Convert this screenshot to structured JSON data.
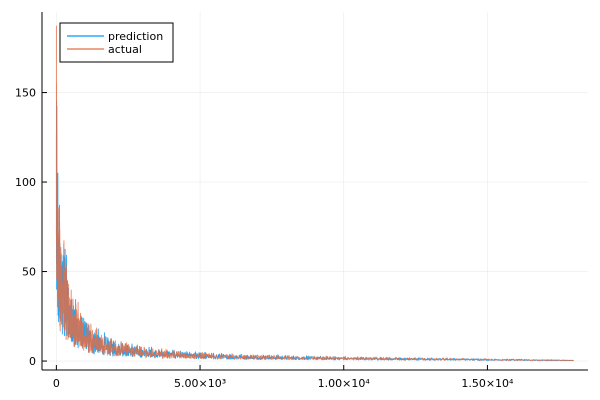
{
  "chart_data": {
    "type": "line",
    "title": "",
    "xlabel": "",
    "ylabel": "",
    "xlim": [
      -500,
      18500
    ],
    "ylim": [
      -5,
      195
    ],
    "grid": true,
    "legend_position": "top-left",
    "x_ticks": [
      {
        "value": 0,
        "label": "0"
      },
      {
        "value": 5000,
        "label": "5.00×10³"
      },
      {
        "value": 10000,
        "label": "1.00×10⁴"
      },
      {
        "value": 15000,
        "label": "1.50×10⁴"
      }
    ],
    "y_ticks": [
      {
        "value": 0,
        "label": "0"
      },
      {
        "value": 50,
        "label": "50"
      },
      {
        "value": 100,
        "label": "100"
      },
      {
        "value": 150,
        "label": "150"
      }
    ],
    "x_range": [
      0,
      18000
    ],
    "envelope": {
      "x": [
        0,
        30,
        60,
        100,
        200,
        300,
        400,
        500,
        700,
        1000,
        1500,
        2000,
        3000,
        4000,
        5000,
        6000,
        8000,
        10000,
        12000,
        14000,
        16000,
        18000
      ],
      "max": [
        190,
        140,
        105,
        95,
        80,
        72,
        60,
        47,
        36,
        26,
        18,
        14,
        9,
        7,
        5.5,
        4.5,
        3.5,
        2.8,
        2.2,
        1.8,
        1.2,
        0.6
      ],
      "min": [
        10,
        6,
        5,
        4,
        3,
        2.5,
        2,
        1.5,
        1.2,
        1,
        0.8,
        0.6,
        0.5,
        0.4,
        0.3,
        0.25,
        0.2,
        0.15,
        0.1,
        0.1,
        0.05,
        0.05
      ]
    },
    "series": [
      {
        "name": "prediction",
        "color": "#009AFA"
      },
      {
        "name": "actual",
        "color": "#E26F46"
      }
    ]
  }
}
